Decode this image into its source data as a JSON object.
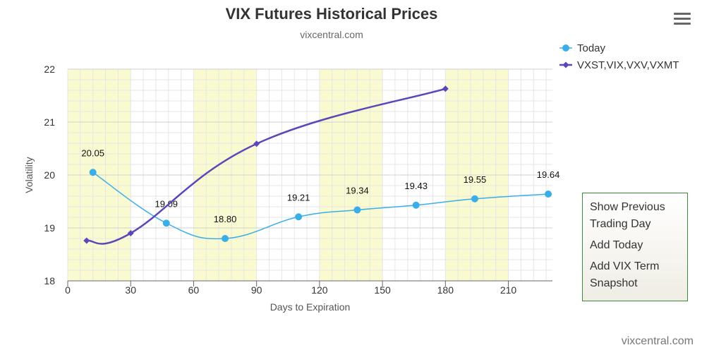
{
  "chart_data": {
    "type": "line",
    "title": "VIX Futures Historical Prices",
    "subtitle": "vixcentral.com",
    "xlabel": "Days to Expiration",
    "ylabel": "Volatility",
    "xlim": [
      0,
      231
    ],
    "ylim": [
      18,
      22
    ],
    "xticks": [
      0,
      30,
      60,
      90,
      120,
      150,
      180,
      210
    ],
    "yticks": [
      18,
      19,
      20,
      21,
      22
    ],
    "grid": true,
    "legend_position": "top-right",
    "series": [
      {
        "name": "Today",
        "color": "#3aaee8",
        "marker": "circle",
        "x": [
          12,
          47,
          75,
          110,
          138,
          166,
          194,
          229
        ],
        "y": [
          20.05,
          19.09,
          18.8,
          19.21,
          19.34,
          19.43,
          19.55,
          19.64
        ],
        "labels": [
          "20.05",
          "19.09",
          "18.80",
          "19.21",
          "19.34",
          "19.43",
          "19.55",
          "19.64"
        ]
      },
      {
        "name": "VXST,VIX,VXV,VXMT",
        "color": "#5a48b8",
        "marker": "diamond",
        "x": [
          9,
          30,
          90,
          180
        ],
        "y": [
          18.76,
          18.9,
          20.59,
          21.63
        ]
      }
    ],
    "bands": [
      [
        0,
        30
      ],
      [
        60,
        90
      ],
      [
        120,
        150
      ],
      [
        180,
        210
      ]
    ],
    "band_color": "#fafad0"
  },
  "menu": {
    "items": [
      "Show Previous Trading Day",
      "Add Today",
      "Add VIX Term Snapshot"
    ],
    "item_lines": [
      [
        "Show Previous",
        "Trading Day"
      ],
      [
        "Add Today"
      ],
      [
        "Add VIX Term",
        "Snapshot"
      ]
    ]
  },
  "credit": "vixcentral.com"
}
